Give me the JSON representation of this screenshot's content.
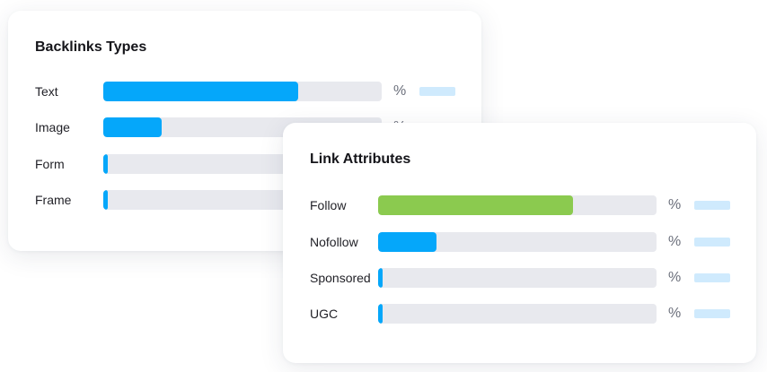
{
  "colors": {
    "blue": "#05a7fa",
    "green": "#8bca4f",
    "track": "#e8e9ee",
    "placeholder": "#cfeafd"
  },
  "backlinks_types": {
    "title": "Backlinks Types",
    "rows": [
      {
        "label": "Text",
        "percent_symbol": "%",
        "fill_fraction": 0.7,
        "color": "#05a7fa"
      },
      {
        "label": "Image",
        "percent_symbol": "%",
        "fill_fraction": 0.21,
        "color": "#05a7fa"
      },
      {
        "label": "Form",
        "percent_symbol": "%",
        "fill_fraction": 0.015,
        "color": "#05a7fa"
      },
      {
        "label": "Frame",
        "percent_symbol": "%",
        "fill_fraction": 0.015,
        "color": "#05a7fa"
      }
    ]
  },
  "link_attributes": {
    "title": "Link Attributes",
    "rows": [
      {
        "label": "Follow",
        "percent_symbol": "%",
        "fill_fraction": 0.7,
        "color": "#8bca4f"
      },
      {
        "label": "Nofollow",
        "percent_symbol": "%",
        "fill_fraction": 0.21,
        "color": "#05a7fa"
      },
      {
        "label": "Sponsored",
        "percent_symbol": "%",
        "fill_fraction": 0.015,
        "color": "#05a7fa"
      },
      {
        "label": "UGC",
        "percent_symbol": "%",
        "fill_fraction": 0.015,
        "color": "#05a7fa"
      }
    ]
  }
}
